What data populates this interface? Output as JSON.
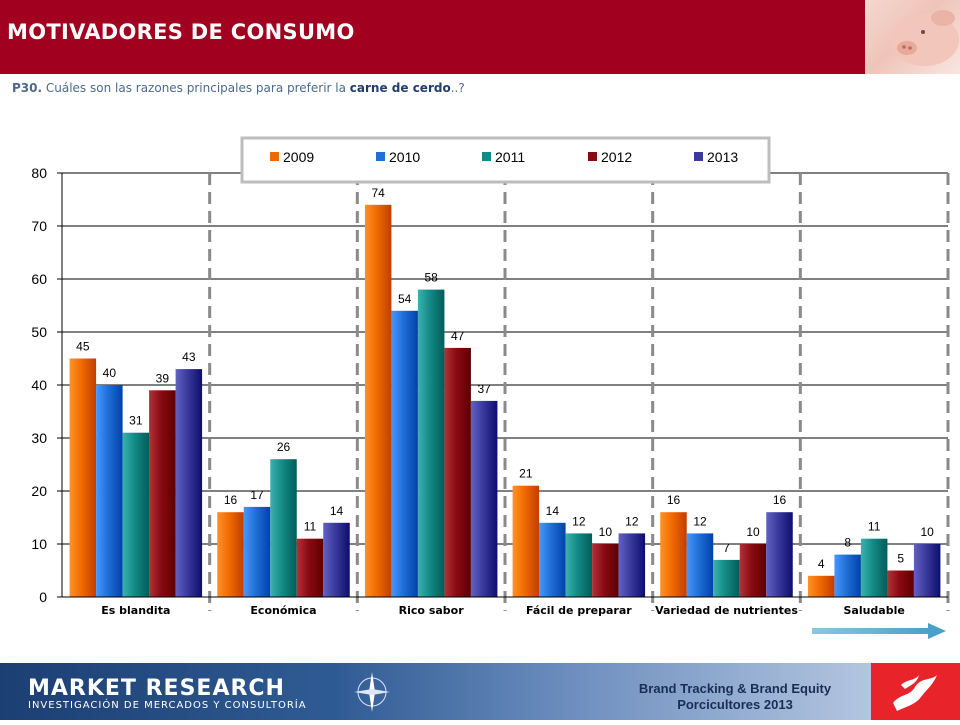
{
  "header": {
    "title": "MOTIVADORES DE CONSUMO"
  },
  "question": {
    "code": "P30.",
    "text_before": " Cuáles son las razones principales para preferir la ",
    "emphasis": "carne de cerdo",
    "text_after": "..?"
  },
  "chart_data": {
    "type": "bar",
    "categories": [
      "Es blandita",
      "Económica",
      "Rico sabor",
      "Fácil de preparar",
      "Variedad de nutrientes",
      "Saludable"
    ],
    "series": [
      {
        "name": "2009",
        "color": "#f06a00",
        "values": [
          45,
          16,
          74,
          21,
          16,
          4
        ]
      },
      {
        "name": "2010",
        "color": "#1f6fd6",
        "values": [
          40,
          17,
          54,
          14,
          12,
          8
        ]
      },
      {
        "name": "2011",
        "color": "#148a86",
        "values": [
          31,
          26,
          58,
          12,
          7,
          11
        ]
      },
      {
        "name": "2012",
        "color": "#8a0a12",
        "values": [
          39,
          11,
          47,
          10,
          10,
          5
        ]
      },
      {
        "name": "2013",
        "color": "#3a3a9c",
        "values": [
          43,
          14,
          37,
          12,
          16,
          10
        ]
      }
    ],
    "ylim": [
      0,
      80
    ],
    "yticks": [
      0,
      10,
      20,
      30,
      40,
      50,
      60,
      70,
      80
    ],
    "grid": true,
    "legend_position": "top-center",
    "data_labels": true
  },
  "footer": {
    "brand": "MARKET RESEARCH",
    "brand_sub": "INVESTIGACIÓN DE MERCADOS Y CONSULTORÍA",
    "line1": "Brand Tracking & Brand Equity",
    "line2": "Porcicultores 2013",
    "compass_icon": "compass-rose-icon",
    "logo_icon": "red-logo-icon"
  }
}
